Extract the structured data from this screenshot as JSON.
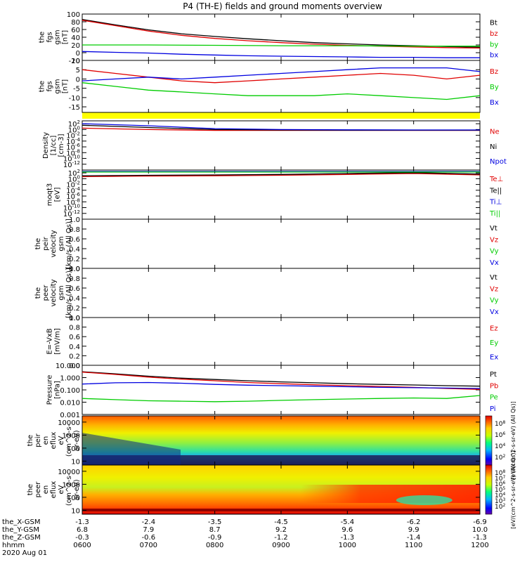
{
  "title": "P4 (TH-E) fields and ground moments overview",
  "colors": {
    "black": "#000000",
    "red": "#e00000",
    "green": "#00cc00",
    "blue": "#0000e0",
    "yellow": "#ffff00"
  },
  "chart_data": [
    {
      "type": "line",
      "panel": "fgs_gsm_total",
      "ylabel": [
        "the",
        "fgs",
        "gsm",
        "[nT]"
      ],
      "ylim": [
        -20,
        100
      ],
      "yticks": [
        100,
        80,
        60,
        40,
        20,
        0,
        -20
      ],
      "legend": [
        {
          "name": "Bt",
          "color": "#000000"
        },
        {
          "name": "bz",
          "color": "#e00000"
        },
        {
          "name": "by",
          "color": "#00cc00"
        },
        {
          "name": "bx",
          "color": "#0000e0"
        }
      ],
      "series": [
        {
          "name": "Bt",
          "color": "#000000",
          "x": [
            0,
            0.5,
            1,
            1.5,
            2,
            2.5,
            3,
            3.5,
            4,
            4.5,
            5,
            5.5,
            6
          ],
          "y": [
            86,
            72,
            59,
            49,
            42,
            36,
            31,
            26,
            23,
            20,
            18,
            16,
            14
          ]
        },
        {
          "name": "bz",
          "color": "#e00000",
          "x": [
            0,
            0.5,
            1,
            1.5,
            2,
            2.5,
            3,
            3.5,
            4,
            4.5,
            5,
            5.5,
            6
          ],
          "y": [
            84,
            70,
            56,
            45,
            37,
            31,
            26,
            22,
            19,
            17,
            15,
            13,
            12
          ]
        },
        {
          "name": "by",
          "color": "#00cc00",
          "x": [
            0,
            1,
            2,
            3,
            4,
            5,
            6
          ],
          "y": [
            20,
            20,
            19,
            18,
            18,
            17,
            17
          ]
        },
        {
          "name": "bx",
          "color": "#0000e0",
          "x": [
            0,
            0.5,
            1,
            1.5,
            2,
            2.5,
            3,
            3.5,
            4,
            4.5,
            5,
            5.5,
            6
          ],
          "y": [
            3,
            1,
            -1,
            -4,
            -6,
            -8,
            -9,
            -10,
            -11,
            -12,
            -12,
            -13,
            -13
          ]
        }
      ]
    },
    {
      "type": "line",
      "panel": "fgs_gsm_components",
      "ylabel": [
        "the",
        "fgs",
        "gsm",
        "[nT]"
      ],
      "ylim": [
        -18,
        10
      ],
      "yticks": [
        10,
        5,
        0,
        -5,
        -10,
        -15
      ],
      "legend": [
        {
          "name": "Bz",
          "color": "#e00000"
        },
        {
          "name": "By",
          "color": "#00cc00"
        },
        {
          "name": "Bx",
          "color": "#0000e0"
        }
      ],
      "series": [
        {
          "name": "Bz",
          "color": "#e00000",
          "x": [
            0,
            0.5,
            1,
            1.5,
            2,
            2.5,
            3,
            3.5,
            4,
            4.5,
            5,
            5.5,
            6
          ],
          "y": [
            5,
            3,
            1,
            -1,
            -2,
            -1,
            0,
            1,
            2,
            3,
            2,
            0,
            2
          ]
        },
        {
          "name": "By",
          "color": "#00cc00",
          "x": [
            0,
            0.5,
            1,
            1.5,
            2,
            2.5,
            3,
            3.5,
            4,
            4.5,
            5,
            5.5,
            6
          ],
          "y": [
            -2,
            -4,
            -6,
            -7,
            -8,
            -9,
            -9,
            -9,
            -8,
            -9,
            -10,
            -11,
            -9
          ]
        },
        {
          "name": "Bx",
          "color": "#0000e0",
          "x": [
            0,
            0.5,
            1,
            1.5,
            2,
            2.5,
            3,
            3.5,
            4,
            4.5,
            5,
            5.5,
            6
          ],
          "y": [
            -1,
            0,
            1,
            0,
            1,
            2,
            3,
            4,
            5,
            6,
            6,
            6,
            4
          ]
        }
      ]
    },
    {
      "type": "line",
      "panel": "density",
      "yscale": "log",
      "ylabel": [
        "Density",
        "[1/cc]",
        "[cm-3]"
      ],
      "ylim": [
        1e-14,
        1000
      ],
      "yticks": [
        "10^2",
        "10^0",
        "10^-2",
        "10^-4",
        "10^-6",
        "10^-8",
        "10^-10",
        "10^-12"
      ],
      "legend": [
        {
          "name": "Ne",
          "color": "#e00000"
        },
        {
          "name": "Ni",
          "color": "#000000"
        },
        {
          "name": "Npot",
          "color": "#0000e0"
        }
      ],
      "series": [
        {
          "name": "Ne",
          "color": "#e00000",
          "x": [
            0,
            1,
            2,
            3,
            4,
            5,
            6
          ],
          "y": [
            3,
            1,
            0.5,
            0.5,
            0.5,
            0.5,
            0.5
          ]
        },
        {
          "name": "Ni",
          "color": "#000000",
          "x": [
            0,
            1,
            2,
            3,
            4,
            5,
            6
          ],
          "y": [
            30,
            5,
            1,
            0.7,
            0.6,
            0.6,
            0.6
          ]
        },
        {
          "name": "Npot",
          "color": "#0000e0",
          "x": [
            0,
            1,
            2,
            3,
            4,
            5,
            6
          ],
          "y": [
            100,
            20,
            2,
            1,
            0.8,
            0.7,
            0.7
          ]
        }
      ]
    },
    {
      "type": "line",
      "panel": "temperature",
      "yscale": "log",
      "ylabel": [
        "moqt3",
        "[eV]"
      ],
      "ylim": [
        1e-14,
        1000
      ],
      "yticks": [
        "10^2",
        "10^0",
        "10^-2",
        "10^-4",
        "10^-6",
        "10^-8",
        "10^-10",
        "10^-12"
      ],
      "legend": [
        {
          "name": "Te⊥",
          "color": "#e00000"
        },
        {
          "name": "Te||",
          "color": "#000000"
        },
        {
          "name": "Ti⊥",
          "color": "#0000e0"
        },
        {
          "name": "Ti||",
          "color": "#00cc00"
        }
      ],
      "series": [
        {
          "name": "Te⊥",
          "color": "#e00000",
          "x": [
            0,
            1,
            2,
            3,
            4,
            5,
            6
          ],
          "y": [
            5,
            8,
            10,
            15,
            30,
            60,
            20
          ]
        },
        {
          "name": "Te||",
          "color": "#000000",
          "x": [
            0,
            1,
            2,
            3,
            4,
            5,
            6
          ],
          "y": [
            10,
            15,
            20,
            30,
            60,
            120,
            40
          ]
        },
        {
          "name": "Ti⊥",
          "color": "#0000e0",
          "x": [
            0,
            1,
            2,
            3,
            4,
            5,
            6
          ],
          "y": [
            300,
            300,
            300,
            300,
            300,
            300,
            300
          ]
        },
        {
          "name": "Ti||",
          "color": "#00cc00",
          "x": [
            0,
            1,
            2,
            3,
            4,
            5,
            6
          ],
          "y": [
            200,
            200,
            200,
            200,
            200,
            200,
            200
          ]
        }
      ]
    },
    {
      "type": "line",
      "panel": "peir_velocity",
      "ylabel": [
        "the",
        "peir",
        "velocity",
        "gsm",
        "[km/s (All Qs)]"
      ],
      "ylim": [
        0,
        1
      ],
      "yticks": [
        "1.0",
        "0.8",
        "0.6",
        "0.4",
        "0.2",
        "0.0"
      ],
      "legend": [
        {
          "name": "Vt",
          "color": "#000000"
        },
        {
          "name": "Vz",
          "color": "#e00000"
        },
        {
          "name": "Vy",
          "color": "#00cc00"
        },
        {
          "name": "Vx",
          "color": "#0000e0"
        }
      ],
      "series": []
    },
    {
      "type": "line",
      "panel": "peer_velocity",
      "ylabel": [
        "the",
        "peer",
        "velocity",
        "gsm",
        "[km/s (All Qs)]"
      ],
      "ylim": [
        0,
        1
      ],
      "yticks": [
        "1.0",
        "0.8",
        "0.6",
        "0.4",
        "0.2",
        "0.0"
      ],
      "legend": [
        {
          "name": "Vt",
          "color": "#000000"
        },
        {
          "name": "Vz",
          "color": "#e00000"
        },
        {
          "name": "Vy",
          "color": "#00cc00"
        },
        {
          "name": "Vx",
          "color": "#0000e0"
        }
      ],
      "series": []
    },
    {
      "type": "line",
      "panel": "electric_field",
      "ylabel": [
        "E=-VxB",
        "[mV/m]"
      ],
      "ylim": [
        0,
        1
      ],
      "yticks": [
        "1.0",
        "0.8",
        "0.6",
        "0.4",
        "0.2",
        "0.0"
      ],
      "legend": [
        {
          "name": "Ez",
          "color": "#e00000"
        },
        {
          "name": "Ey",
          "color": "#00cc00"
        },
        {
          "name": "Ex",
          "color": "#0000e0"
        }
      ],
      "series": []
    },
    {
      "type": "line",
      "panel": "pressure",
      "yscale": "log",
      "ylabel": [
        "Pressure",
        "[nPa]"
      ],
      "ylim": [
        0.001,
        10
      ],
      "yticks": [
        "10.000",
        "1.000",
        "0.100",
        "0.010",
        "0.001"
      ],
      "legend": [
        {
          "name": "Pt",
          "color": "#000000"
        },
        {
          "name": "Pb",
          "color": "#e00000"
        },
        {
          "name": "Pe",
          "color": "#00cc00"
        },
        {
          "name": "Pi",
          "color": "#0000e0"
        }
      ],
      "series": [
        {
          "name": "Pt",
          "color": "#000000",
          "x": [
            0,
            0.5,
            1,
            1.5,
            2,
            2.5,
            3,
            3.5,
            4,
            4.5,
            5,
            5.5,
            6
          ],
          "y": [
            3,
            2,
            1.3,
            0.9,
            0.7,
            0.55,
            0.45,
            0.38,
            0.32,
            0.28,
            0.25,
            0.22,
            0.2
          ]
        },
        {
          "name": "Pb",
          "color": "#e00000",
          "x": [
            0,
            0.5,
            1,
            1.5,
            2,
            2.5,
            3,
            3.5,
            4,
            4.5,
            5,
            5.5,
            6
          ],
          "y": [
            2.8,
            1.8,
            1.1,
            0.75,
            0.55,
            0.4,
            0.32,
            0.26,
            0.22,
            0.19,
            0.16,
            0.13,
            0.11
          ]
        },
        {
          "name": "Pe",
          "color": "#00cc00",
          "x": [
            0,
            0.5,
            1,
            1.5,
            2,
            2.5,
            3,
            3.5,
            4,
            4.5,
            5,
            5.5,
            6
          ],
          "y": [
            0.02,
            0.016,
            0.013,
            0.012,
            0.011,
            0.012,
            0.014,
            0.016,
            0.018,
            0.02,
            0.022,
            0.02,
            0.035
          ]
        },
        {
          "name": "Pi",
          "color": "#0000e0",
          "x": [
            0,
            0.5,
            1,
            1.5,
            2,
            2.5,
            3,
            3.5,
            4,
            4.5,
            5,
            5.5,
            6
          ],
          "y": [
            0.3,
            0.38,
            0.4,
            0.35,
            0.28,
            0.24,
            0.22,
            0.2,
            0.18,
            0.16,
            0.15,
            0.14,
            0.13
          ]
        }
      ]
    },
    {
      "type": "heatmap",
      "panel": "peir_eflux",
      "yscale": "log",
      "ylabel": [
        "the",
        "peir",
        "en",
        "eflux",
        "eV",
        "(cm^2-s-",
        "sr-eV)"
      ],
      "ylim": [
        5,
        30000
      ],
      "yticks": [
        "10000",
        "1000",
        "100",
        "10"
      ],
      "colorbar": {
        "label": "[eV/(cm^2-s-sr-eV) (All Qs)]",
        "ticks": [
          "10^8",
          "10^6",
          "10^4",
          "10^2"
        ]
      }
    },
    {
      "type": "heatmap",
      "panel": "peer_eflux",
      "yscale": "log",
      "ylabel": [
        "the",
        "peer",
        "en",
        "eflux",
        "eV",
        "(cm^2-s-",
        "sr-eV)"
      ],
      "ylim": [
        5,
        30000
      ],
      "yticks": [
        "10000",
        "1000",
        "100",
        "10"
      ],
      "colorbar": {
        "label": "[eV/(cm^2-s-sr-eV) (All Qs)]",
        "ticks": [
          "10^8",
          "10^7",
          "10^6",
          "10^5",
          "10^4",
          "10^3",
          "10^2"
        ]
      }
    }
  ],
  "x_axis": {
    "rows": [
      {
        "label": "the_X-GSM",
        "values": [
          "-1.3",
          "-2.4",
          "-3.5",
          "-4.5",
          "-5.4",
          "-6.2",
          "-6.9"
        ]
      },
      {
        "label": "the_Y-GSM",
        "values": [
          "6.8",
          "7.9",
          "8.7",
          "9.2",
          "9.6",
          "9.9",
          "10.0"
        ]
      },
      {
        "label": "the_Z-GSM",
        "values": [
          "-0.3",
          "-0.6",
          "-0.9",
          "-1.2",
          "-1.3",
          "-1.4",
          "-1.3"
        ]
      },
      {
        "label": "hhmm",
        "values": [
          "0600",
          "0700",
          "0800",
          "0900",
          "1000",
          "1100",
          "1200"
        ]
      }
    ],
    "date": "2020 Aug 01"
  }
}
